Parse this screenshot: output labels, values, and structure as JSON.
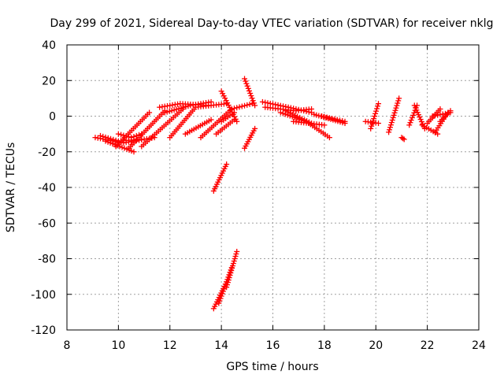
{
  "chart_data": {
    "type": "scatter",
    "title": "Day 299 of 2021, Sidereal Day-to-day VTEC variation (SDTVAR) for receiver nklg",
    "xlabel": "GPS time / hours",
    "ylabel": "SDTVAR / TECUs",
    "xlim": [
      8,
      24
    ],
    "ylim": [
      -120,
      40
    ],
    "xticks": [
      8,
      10,
      12,
      14,
      16,
      18,
      20,
      22,
      24
    ],
    "yticks": [
      -120,
      -100,
      -80,
      -60,
      -40,
      -20,
      0,
      20,
      40
    ],
    "grid": true,
    "marker": "plus",
    "color": "#ff0000",
    "series_segments": [
      {
        "name": "arc-1",
        "x": [
          9.1,
          10.2,
          11.4
        ],
        "y": [
          -12,
          -15,
          -12
        ]
      },
      {
        "name": "arc-2",
        "x": [
          9.3,
          10.0,
          10.9
        ],
        "y": [
          -11,
          -14,
          -13
        ]
      },
      {
        "name": "arc-3",
        "x": [
          9.5,
          10.6
        ],
        "y": [
          -14,
          -20
        ]
      },
      {
        "name": "arc-4",
        "x": [
          10.0,
          10.5,
          10.9
        ],
        "y": [
          -10,
          -12,
          -10
        ]
      },
      {
        "name": "arc-5",
        "x": [
          9.9,
          11.2
        ],
        "y": [
          -17,
          2
        ]
      },
      {
        "name": "arc-6",
        "x": [
          10.4,
          11.8
        ],
        "y": [
          -18,
          3
        ]
      },
      {
        "name": "arc-7",
        "x": [
          10.9,
          12.5
        ],
        "y": [
          -17,
          4
        ]
      },
      {
        "name": "arc-8",
        "x": [
          11.6,
          12.4,
          13.5
        ],
        "y": [
          5,
          7,
          6
        ]
      },
      {
        "name": "arc-9",
        "x": [
          11.8,
          12.8,
          13.6
        ],
        "y": [
          2,
          6,
          8
        ]
      },
      {
        "name": "arc-10",
        "x": [
          12.0,
          13.0,
          14.2
        ],
        "y": [
          -12,
          5,
          7
        ]
      },
      {
        "name": "arc-11",
        "x": [
          12.6,
          13.6
        ],
        "y": [
          -10,
          -2
        ]
      },
      {
        "name": "arc-12",
        "x": [
          13.2,
          14.4,
          15.2
        ],
        "y": [
          -12,
          4,
          7
        ]
      },
      {
        "name": "arc-13",
        "x": [
          13.8,
          14.5
        ],
        "y": [
          -10,
          -2
        ]
      },
      {
        "name": "arc-14",
        "x": [
          14.0,
          14.6
        ],
        "y": [
          14,
          -3
        ]
      },
      {
        "name": "arc-15",
        "x": [
          14.9,
          15.3
        ],
        "y": [
          21,
          6
        ]
      },
      {
        "name": "arc-16",
        "x": [
          14.9,
          15.3
        ],
        "y": [
          -18,
          -7
        ]
      },
      {
        "name": "arc-17",
        "x": [
          14.0,
          14.5
        ],
        "y": [
          -3,
          2
        ]
      },
      {
        "name": "arc-18",
        "x": [
          13.7,
          14.2
        ],
        "y": [
          -42,
          -27
        ]
      },
      {
        "name": "arc-19",
        "x": [
          13.7,
          14.2
        ],
        "y": [
          -108,
          -93
        ]
      },
      {
        "name": "arc-20",
        "x": [
          13.9,
          14.4
        ],
        "y": [
          -105,
          -85
        ]
      },
      {
        "name": "arc-21",
        "x": [
          14.2,
          14.6
        ],
        "y": [
          -96,
          -76
        ]
      },
      {
        "name": "arc-22",
        "x": [
          15.6,
          16.6,
          17.5
        ],
        "y": [
          8,
          5,
          2
        ]
      },
      {
        "name": "arc-23",
        "x": [
          15.7,
          16.9,
          17.5
        ],
        "y": [
          5,
          3,
          4
        ]
      },
      {
        "name": "arc-24",
        "x": [
          16.3,
          17.3,
          18.2
        ],
        "y": [
          2,
          -3,
          -12
        ]
      },
      {
        "name": "arc-25",
        "x": [
          16.5,
          17.5
        ],
        "y": [
          3,
          -4
        ]
      },
      {
        "name": "arc-26",
        "x": [
          16.8,
          18.0
        ],
        "y": [
          -3,
          -5
        ]
      },
      {
        "name": "arc-27",
        "x": [
          17.6,
          18.8
        ],
        "y": [
          1,
          -4
        ]
      },
      {
        "name": "arc-28",
        "x": [
          17.9,
          18.8
        ],
        "y": [
          0,
          -3
        ]
      },
      {
        "name": "arc-29",
        "x": [
          19.6,
          20.1
        ],
        "y": [
          -3,
          -4
        ]
      },
      {
        "name": "arc-30",
        "x": [
          19.8,
          20.1
        ],
        "y": [
          -7,
          7
        ]
      },
      {
        "name": "arc-31",
        "x": [
          20.5,
          20.9
        ],
        "y": [
          -9,
          10
        ]
      },
      {
        "name": "arc-32",
        "x": [
          21.0,
          21.1
        ],
        "y": [
          -12,
          -13
        ]
      },
      {
        "name": "arc-33",
        "x": [
          21.3,
          21.6
        ],
        "y": [
          -5,
          6
        ]
      },
      {
        "name": "arc-34",
        "x": [
          21.5,
          21.9
        ],
        "y": [
          6,
          -7
        ]
      },
      {
        "name": "arc-35",
        "x": [
          21.8,
          22.4
        ],
        "y": [
          -5,
          -10
        ]
      },
      {
        "name": "arc-36",
        "x": [
          22.0,
          22.5
        ],
        "y": [
          -4,
          4
        ]
      },
      {
        "name": "arc-37",
        "x": [
          22.2,
          22.9
        ],
        "y": [
          0,
          2
        ]
      },
      {
        "name": "arc-38",
        "x": [
          22.3,
          22.8
        ],
        "y": [
          -9,
          2
        ]
      },
      {
        "name": "arc-39",
        "x": [
          22.5,
          22.9
        ],
        "y": [
          -3,
          3
        ]
      }
    ]
  }
}
